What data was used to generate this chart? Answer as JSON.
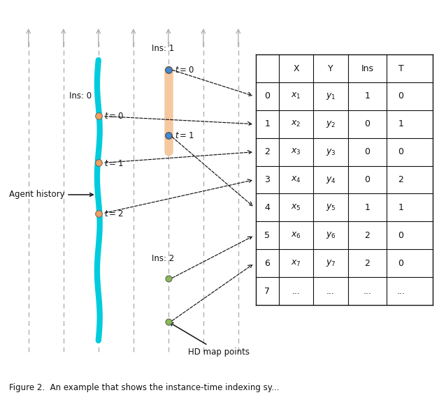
{
  "fig_width": 6.38,
  "fig_height": 5.76,
  "bg_color": "#ffffff",
  "table": {
    "headers": [
      "",
      "X",
      "Y",
      "Ins",
      "T"
    ],
    "rows": [
      [
        "0",
        "x_1",
        "y_1",
        "1",
        "0"
      ],
      [
        "1",
        "x_2",
        "y_2",
        "0",
        "1"
      ],
      [
        "2",
        "x_3",
        "y_3",
        "0",
        "0"
      ],
      [
        "3",
        "x_4",
        "y_4",
        "0",
        "2"
      ],
      [
        "4",
        "x_5",
        "y_5",
        "1",
        "1"
      ],
      [
        "5",
        "x_6",
        "y_6",
        "2",
        "0"
      ],
      [
        "6",
        "x_7",
        "y_7",
        "2",
        "0"
      ],
      [
        "7",
        "...",
        "...",
        "...",
        "..."
      ]
    ]
  },
  "dashed_lane_color": "#b0b0b0",
  "cyan_track_color": "#00ccdd",
  "orange_track_color": "#f5c9a0",
  "agent_dot_color": "#f0a060",
  "ins1_dot_color": "#4488cc",
  "ins2_dot_color": "#88bb55",
  "arrow_color": "#111111",
  "caption_text": "Figure 2.  An example that shows the instance-time indexing sy..."
}
